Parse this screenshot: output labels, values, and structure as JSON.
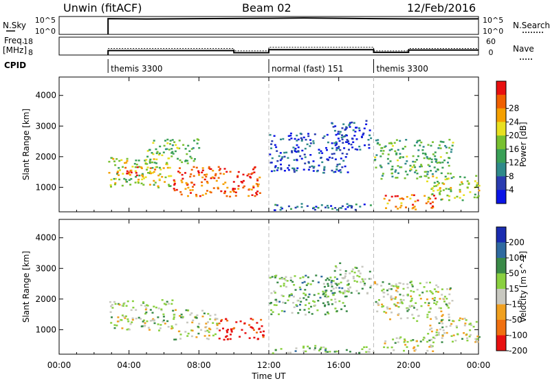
{
  "header": {
    "station": "Unwin (fitACF)",
    "beam": "Beam 02",
    "date": "12/Feb/2016"
  },
  "top_panels": {
    "nsky_label": "N.Sky",
    "nsky_ticks": [
      "10^5",
      "10^0"
    ],
    "nsearch_label": "N.Search",
    "nsearch_ticks": [
      "10^5",
      "10^0"
    ],
    "freq_label": "Freq.",
    "freq_unit": "[MHz]",
    "freq_ticks": [
      "18",
      "8"
    ],
    "nave_label": "Nave",
    "nave_ticks": [
      "60",
      "0"
    ],
    "cpid_label": "CPID"
  },
  "cpid_segments": [
    {
      "start_h": 2.8,
      "label": "themis 3300"
    },
    {
      "start_h": 12.0,
      "label": "normal (fast) 151"
    },
    {
      "start_h": 18.0,
      "label": "themis 3300"
    }
  ],
  "nsky_series": [
    [
      2.8,
      0.88
    ],
    [
      5.0,
      0.86
    ],
    [
      8.0,
      0.88
    ],
    [
      12.0,
      0.9
    ],
    [
      14.0,
      0.92
    ],
    [
      18.0,
      0.88
    ],
    [
      21.0,
      0.86
    ],
    [
      24.0,
      0.87
    ]
  ],
  "freq_series": [
    [
      2.8,
      10.5
    ],
    [
      10.0,
      10.5
    ],
    [
      10.0,
      9.3
    ],
    [
      12.0,
      9.3
    ],
    [
      12.0,
      11.0
    ],
    [
      18.0,
      11.0
    ],
    [
      18.0,
      9.5
    ],
    [
      20.0,
      9.5
    ],
    [
      20.0,
      10.8
    ],
    [
      24.0,
      10.8
    ]
  ],
  "nave_series": [
    [
      2.8,
      22
    ],
    [
      10.0,
      22
    ],
    [
      10.0,
      14
    ],
    [
      12.0,
      14
    ],
    [
      12.0,
      26
    ],
    [
      18.0,
      26
    ],
    [
      18.0,
      14
    ],
    [
      20.0,
      14
    ],
    [
      20.0,
      22
    ],
    [
      24.0,
      22
    ]
  ],
  "chart_data": [
    {
      "type": "heatmap",
      "name": "power",
      "xlabel": "Time UT",
      "ylabel": "Slant Range [km]",
      "xlim": [
        0,
        24
      ],
      "ylim": [
        200,
        4600
      ],
      "x_ticks": [
        "00:00",
        "04:00",
        "08:00",
        "12:00",
        "16:00",
        "20:00",
        "00:00"
      ],
      "x_tick_values": [
        0,
        4,
        8,
        12,
        16,
        20,
        24
      ],
      "y_ticks": [
        1000,
        2000,
        3000,
        4000
      ],
      "colorbar_label": "Power [dB]",
      "colorbar_ticks": [
        "4",
        "8",
        "12",
        "16",
        "20",
        "24",
        "28"
      ],
      "colorbar_colors": [
        "#0a14e6",
        "#2a3cb0",
        "#2f8a8a",
        "#3aa057",
        "#78c030",
        "#e8e020",
        "#f5a000",
        "#f06000",
        "#e81010"
      ],
      "regions": [
        {
          "t0": 2.8,
          "t1": 6.5,
          "r0": 1000,
          "r1": 2000,
          "level": 0.55
        },
        {
          "t0": 3.0,
          "t1": 5.5,
          "r0": 1400,
          "r1": 1700,
          "level": 0.85
        },
        {
          "t0": 6.5,
          "t1": 11.5,
          "r0": 700,
          "r1": 1700,
          "level": 0.85
        },
        {
          "t0": 5.0,
          "t1": 8.0,
          "r0": 1800,
          "r1": 2600,
          "level": 0.45
        },
        {
          "t0": 12.0,
          "t1": 16.5,
          "r0": 1500,
          "r1": 2800,
          "level": 0.15
        },
        {
          "t0": 15.5,
          "t1": 17.8,
          "r0": 2200,
          "r1": 3200,
          "level": 0.15
        },
        {
          "t0": 18.0,
          "t1": 22.5,
          "r0": 1300,
          "r1": 2600,
          "level": 0.4
        },
        {
          "t0": 18.5,
          "t1": 21.5,
          "r0": 300,
          "r1": 800,
          "level": 0.8
        },
        {
          "t0": 21.0,
          "t1": 24.0,
          "r0": 600,
          "r1": 1400,
          "level": 0.55
        },
        {
          "t0": 12.0,
          "t1": 18.0,
          "r0": 250,
          "r1": 500,
          "level": 0.2
        }
      ]
    },
    {
      "type": "heatmap",
      "name": "velocity",
      "xlabel": "Time UT",
      "ylabel": "Slant Range [km]",
      "xlim": [
        0,
        24
      ],
      "ylim": [
        200,
        4600
      ],
      "x_ticks": [
        "00:00",
        "04:00",
        "08:00",
        "12:00",
        "16:00",
        "20:00",
        "00:00"
      ],
      "x_tick_values": [
        0,
        4,
        8,
        12,
        16,
        20,
        24
      ],
      "y_ticks": [
        1000,
        2000,
        3000,
        4000
      ],
      "colorbar_label": "Velocity [m s^-1]",
      "colorbar_ticks": [
        "200",
        "100",
        "50",
        "15",
        "-15",
        "-50",
        "-100",
        "-200"
      ],
      "colorbar_colors": [
        "#1a2cb0",
        "#2f6aa0",
        "#3a8a48",
        "#8ad040",
        "#c8c8c0",
        "#f0a020",
        "#f07010",
        "#e81010"
      ],
      "regions": [
        {
          "t0": 2.8,
          "t1": 6.5,
          "r0": 1000,
          "r1": 2000,
          "level": 0.5
        },
        {
          "t0": 6.5,
          "t1": 9.0,
          "r0": 700,
          "r1": 1700,
          "level": 0.5
        },
        {
          "t0": 9.0,
          "t1": 11.7,
          "r0": 700,
          "r1": 1400,
          "level": 0.95
        },
        {
          "t0": 12.0,
          "t1": 16.5,
          "r0": 1500,
          "r1": 2800,
          "level": 0.38
        },
        {
          "t0": 15.5,
          "t1": 17.8,
          "r0": 2200,
          "r1": 3200,
          "level": 0.45
        },
        {
          "t0": 18.0,
          "t1": 22.5,
          "r0": 1300,
          "r1": 2600,
          "level": 0.5
        },
        {
          "t0": 18.5,
          "t1": 21.5,
          "r0": 300,
          "r1": 800,
          "level": 0.5
        },
        {
          "t0": 21.0,
          "t1": 24.0,
          "r0": 600,
          "r1": 1400,
          "level": 0.5
        },
        {
          "t0": 12.0,
          "t1": 18.0,
          "r0": 250,
          "r1": 500,
          "level": 0.4
        }
      ]
    }
  ]
}
